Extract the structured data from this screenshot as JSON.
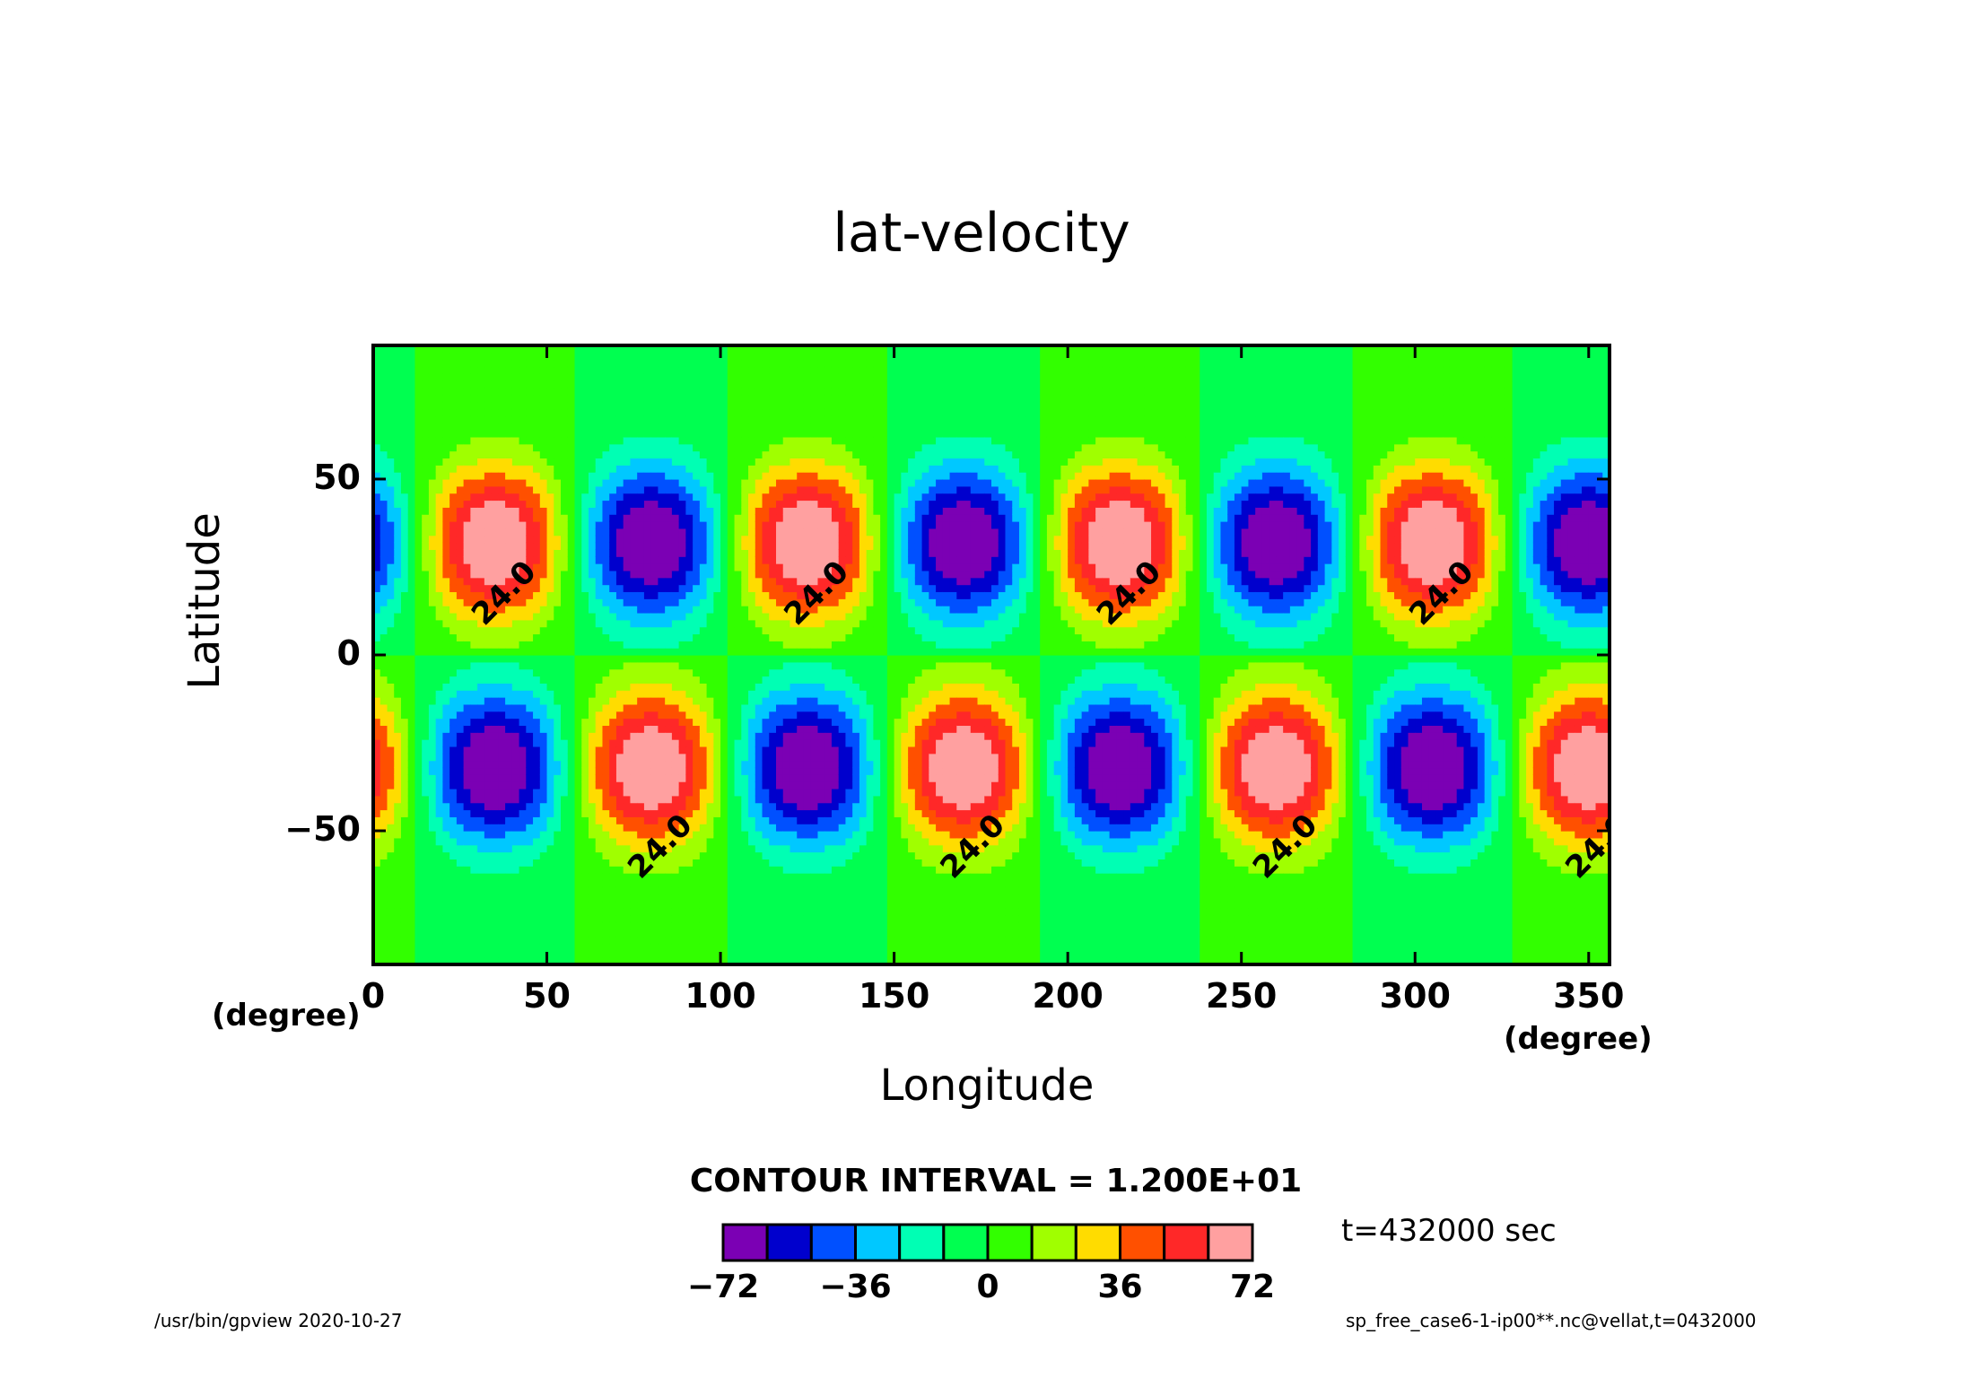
{
  "chart_data": {
    "type": "heatmap",
    "title": "lat-velocity",
    "xlabel": "Longitude",
    "ylabel": "Latitude",
    "x_unit": "(degree)",
    "y_unit": "(degree)",
    "xlim": [
      0,
      356
    ],
    "ylim": [
      -88,
      88
    ],
    "x_ticks": [
      "0",
      "50",
      "100",
      "150",
      "200",
      "250",
      "300",
      "350"
    ],
    "y_ticks": [
      "50",
      "0",
      "−50"
    ],
    "contour_interval_text": "CONTOUR INTERVAL = 1.200E+01",
    "contour_label": "24.0",
    "colorbar": {
      "levels": [
        -72,
        -60,
        -48,
        -36,
        -24,
        -12,
        0,
        12,
        24,
        36,
        48,
        60,
        72
      ],
      "colors": [
        "#7b00b4",
        "#0000cd",
        "#0050ff",
        "#00c8ff",
        "#00ffb4",
        "#00ff50",
        "#32ff00",
        "#a0ff00",
        "#ffdc00",
        "#ff5000",
        "#ff2828",
        "#ffa0a0"
      ],
      "tick_labels": [
        "−72",
        "−36",
        "0",
        "36",
        "72"
      ],
      "tick_values": [
        -72,
        -36,
        0,
        36,
        72
      ]
    },
    "background_color": "#32ff00",
    "field": {
      "description_kind": "wavenumber-4 velocity pattern",
      "amplitude": 78,
      "north_center_lat": 32,
      "south_center_lat": -32,
      "north_positive_centers_lon": [
        35,
        125,
        215,
        305
      ],
      "north_negative_centers_lon": [
        80,
        170,
        260,
        350
      ],
      "south_positive_centers_lon": [
        80,
        170,
        260,
        350
      ],
      "south_negative_centers_lon": [
        35,
        125,
        215,
        305
      ]
    }
  },
  "annotations": {
    "time": "t=432000 sec",
    "footer_left": "/usr/bin/gpview   2020-10-27",
    "footer_right": "sp_free_case6-1-ip00**.nc@vellat,t=0432000"
  }
}
